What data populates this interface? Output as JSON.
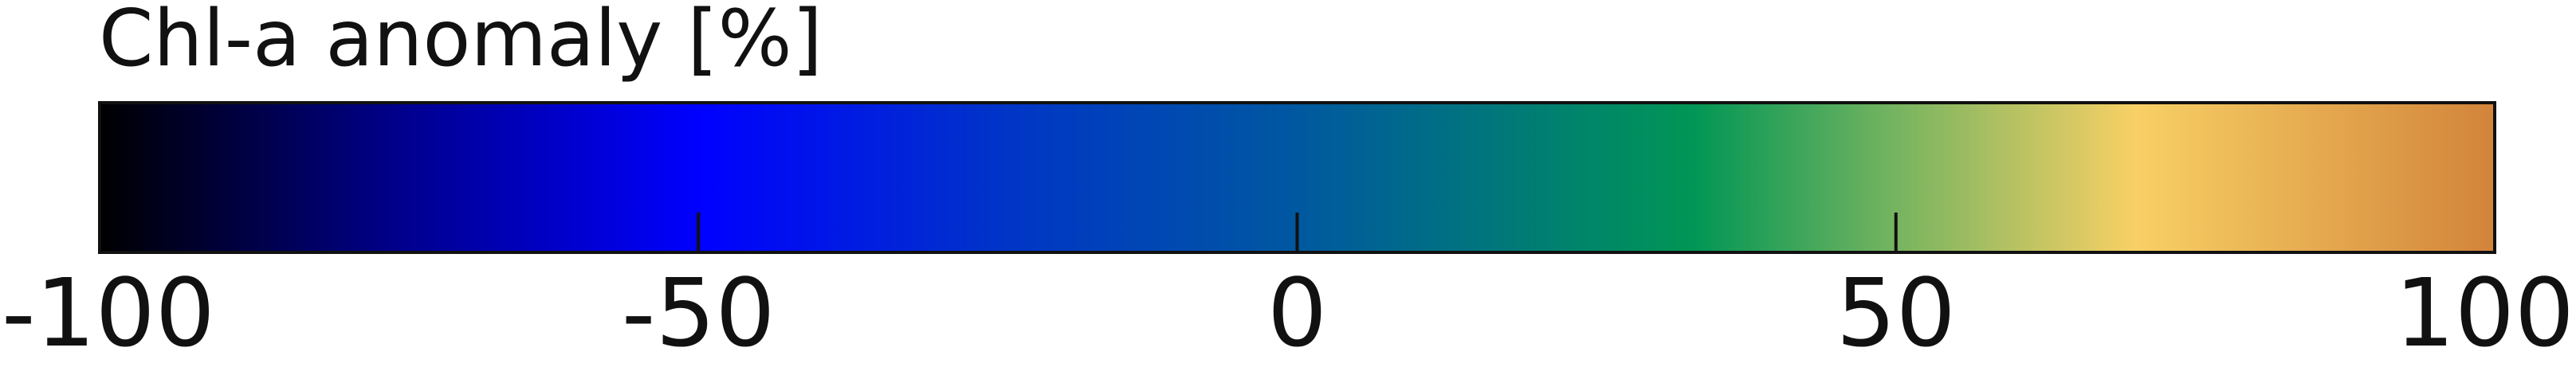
{
  "chart_data": {
    "type": "heatmap",
    "title": "Chl-a anomaly [%]",
    "orientation": "horizontal",
    "range": [
      -100,
      100
    ],
    "ticks": [
      -100,
      -50,
      0,
      50,
      100
    ],
    "tick_labels": [
      "-100",
      "-50",
      "0",
      "50",
      "100"
    ],
    "colormap": [
      {
        "value": -100,
        "color": "#000000"
      },
      {
        "value": -75,
        "color": "#00008c"
      },
      {
        "value": -50,
        "color": "#0000ff"
      },
      {
        "value": -25,
        "color": "#0034c8"
      },
      {
        "value": 0,
        "color": "#0058a0"
      },
      {
        "value": 33,
        "color": "#009655"
      },
      {
        "value": 50,
        "color": "#76b460"
      },
      {
        "value": 70,
        "color": "#f8d065"
      },
      {
        "value": 100,
        "color": "#d2843a"
      }
    ]
  }
}
